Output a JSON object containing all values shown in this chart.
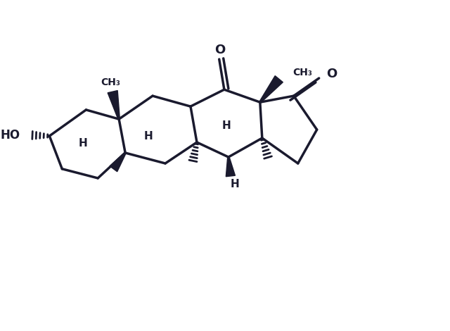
{
  "bg_color": "#ffffff",
  "line_color": "#1a1a2e",
  "line_width": 2.5,
  "figsize": [
    6.4,
    4.7
  ],
  "dpi": 100,
  "xlim": [
    0,
    10
  ],
  "ylim": [
    0,
    7.8
  ]
}
